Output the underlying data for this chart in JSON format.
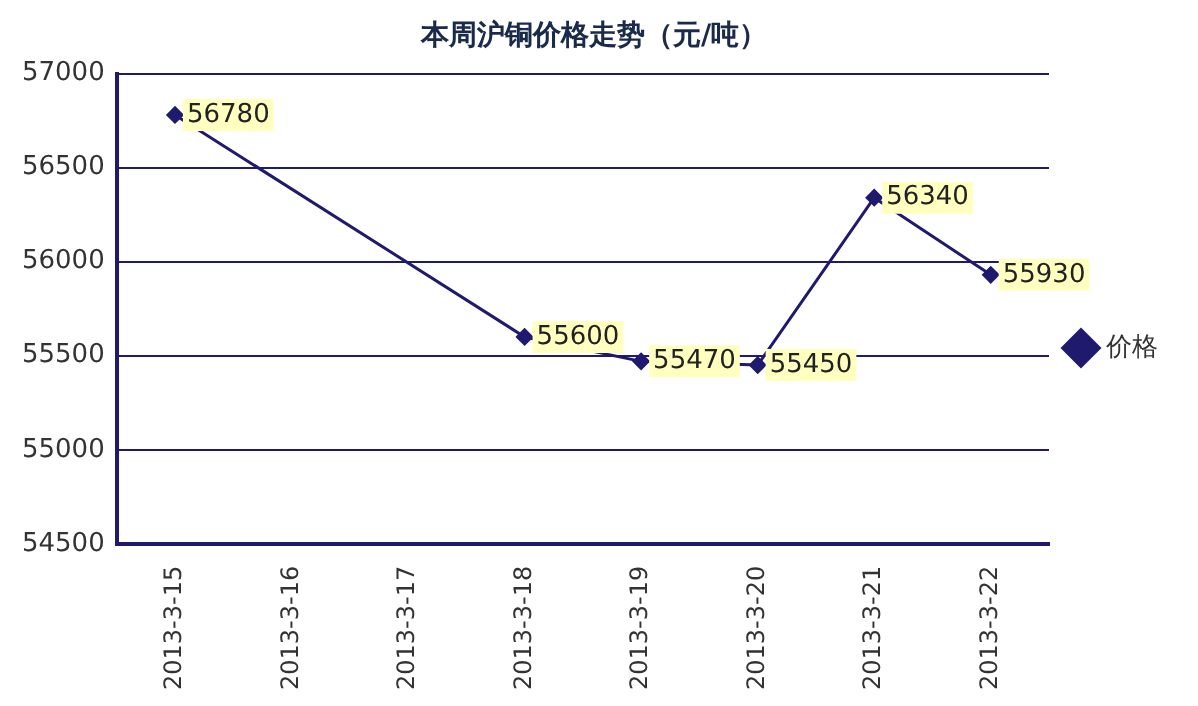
{
  "chart_data": {
    "type": "line",
    "title": "本周沪铜价格走势（元/吨）",
    "categories": [
      "2013-3-15",
      "2013-3-16",
      "2013-3-17",
      "2013-3-18",
      "2013-3-19",
      "2013-3-20",
      "2013-3-21",
      "2013-3-22"
    ],
    "series": [
      {
        "name": "价格",
        "color": "#1f1a6e",
        "values": [
          56780,
          null,
          null,
          55600,
          55470,
          55450,
          56340,
          55930
        ]
      }
    ],
    "ylim": [
      54500,
      57000
    ],
    "yticks": [
      54500,
      55000,
      55500,
      56000,
      56500,
      57000
    ],
    "grid": "y",
    "legend": "right",
    "marker": "diamond",
    "line_style": "solid",
    "data_labels": true
  }
}
